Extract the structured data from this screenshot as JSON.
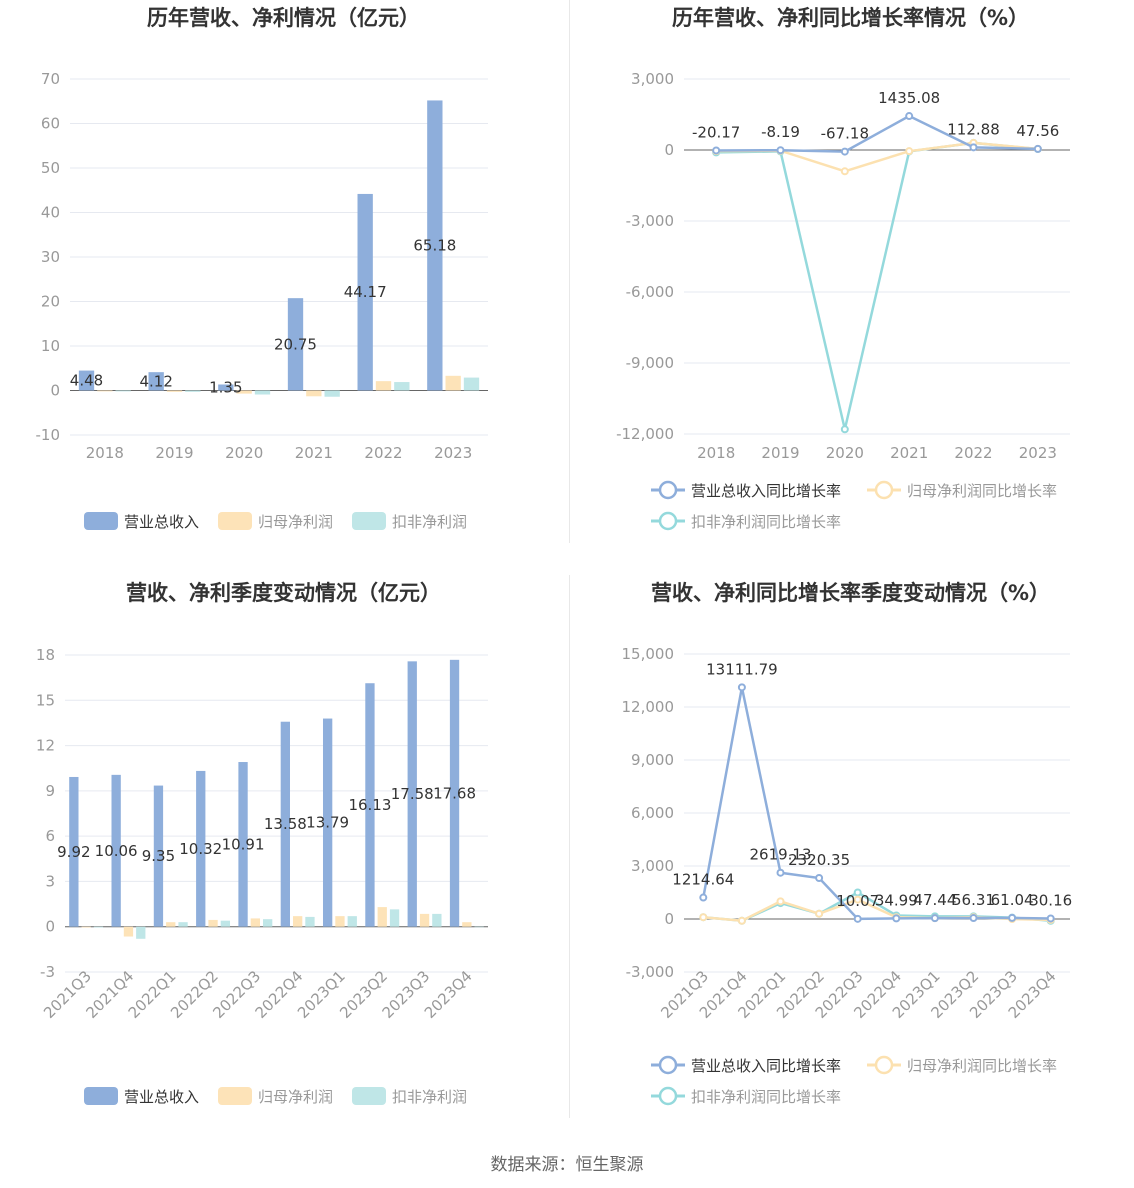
{
  "colors": {
    "revenue": "#8eaedb",
    "net_profit": "#fde3b8",
    "deducted_profit": "#bfe6e7",
    "revenue_line": "#8eaedb",
    "net_profit_line": "#fce1b0",
    "deducted_profit_line": "#94d9dc",
    "grid": "#e6e9f0",
    "axis_text": "#999999",
    "title": "#333333"
  },
  "source": "数据来源：恒生聚源",
  "chart_data": [
    {
      "id": "annual_bar",
      "type": "bar",
      "title": "历年营收、净利情况（亿元）",
      "categories": [
        "2018",
        "2019",
        "2020",
        "2021",
        "2022",
        "2023"
      ],
      "ylim": [
        -10,
        70
      ],
      "yticks": [
        -10,
        0,
        10,
        20,
        30,
        40,
        50,
        60,
        70
      ],
      "series": [
        {
          "name": "营业总收入",
          "values": [
            4.48,
            4.12,
            1.35,
            20.75,
            44.17,
            65.18
          ],
          "labels": [
            "4.48",
            "4.12",
            "1.35",
            "20.75",
            "44.17",
            "65.18"
          ]
        },
        {
          "name": "归母净利润",
          "values": [
            -0.2,
            -0.3,
            -0.7,
            -1.3,
            2.1,
            3.3
          ]
        },
        {
          "name": "扣非净利润",
          "values": [
            -0.2,
            -0.3,
            -0.9,
            -1.4,
            1.9,
            2.9
          ]
        }
      ],
      "legend_position": "bottom"
    },
    {
      "id": "annual_growth",
      "type": "line",
      "title": "历年营收、净利同比增长率情况（%）",
      "categories": [
        "2018",
        "2019",
        "2020",
        "2021",
        "2022",
        "2023"
      ],
      "ylim": [
        -12000,
        3000
      ],
      "yticks": [
        -12000,
        -9000,
        -6000,
        -3000,
        0,
        3000
      ],
      "ytick_labels": [
        "-12,000",
        "-9,000",
        "-6,000",
        "-3,000",
        "0",
        "3,000"
      ],
      "series": [
        {
          "name": "营业总收入同比增长率",
          "values": [
            -20.17,
            -8.19,
            -67.18,
            1435.08,
            112.88,
            47.56
          ],
          "labels": [
            "-20.17",
            "-8.19",
            "-67.18",
            "1435.08",
            "112.88",
            "47.56"
          ]
        },
        {
          "name": "归母净利润同比增长率",
          "values": [
            -50,
            -30,
            -900,
            -50,
            300,
            50
          ]
        },
        {
          "name": "扣非净利润同比增长率",
          "values": [
            -100,
            -60,
            -11800,
            -60,
            300,
            40
          ]
        }
      ],
      "legend_position": "bottom"
    },
    {
      "id": "quarter_bar",
      "type": "bar",
      "title": "营收、净利季度变动情况（亿元）",
      "categories": [
        "2021Q3",
        "2021Q4",
        "2022Q1",
        "2022Q2",
        "2022Q3",
        "2022Q4",
        "2023Q1",
        "2023Q2",
        "2023Q3",
        "2023Q4"
      ],
      "ylim": [
        -3,
        18
      ],
      "yticks": [
        -3,
        0,
        3,
        6,
        9,
        12,
        15,
        18
      ],
      "series": [
        {
          "name": "营业总收入",
          "values": [
            9.92,
            10.06,
            9.35,
            10.32,
            10.91,
            13.58,
            13.79,
            16.13,
            17.58,
            17.68
          ],
          "labels": [
            "9.92",
            "10.06",
            "9.35",
            "10.32",
            "10.91",
            "13.58",
            "13.79",
            "16.13",
            "17.58",
            "17.68"
          ]
        },
        {
          "name": "归母净利润",
          "values": [
            -0.05,
            -0.65,
            0.3,
            0.45,
            0.55,
            0.7,
            0.7,
            1.3,
            0.85,
            0.3
          ]
        },
        {
          "name": "扣非净利润",
          "values": [
            -0.05,
            -0.8,
            0.3,
            0.4,
            0.5,
            0.65,
            0.7,
            1.15,
            0.85,
            0.0
          ]
        }
      ],
      "legend_position": "bottom"
    },
    {
      "id": "quarter_growth",
      "type": "line",
      "title": "营收、净利同比增长率季度变动情况（%）",
      "categories": [
        "2021Q3",
        "2021Q4",
        "2022Q1",
        "2022Q2",
        "2022Q3",
        "2022Q4",
        "2023Q1",
        "2023Q2",
        "2023Q3",
        "2023Q4"
      ],
      "ylim": [
        -3000,
        15000
      ],
      "yticks": [
        -3000,
        0,
        3000,
        6000,
        9000,
        12000,
        15000
      ],
      "ytick_labels": [
        "-3,000",
        "0",
        "3,000",
        "6,000",
        "9,000",
        "12,000",
        "15,000"
      ],
      "series": [
        {
          "name": "营业总收入同比增长率",
          "values": [
            1214.64,
            13111.79,
            2619.13,
            2320.35,
            10.07,
            34.99,
            47.44,
            56.31,
            61.04,
            30.16
          ],
          "labels": [
            "1214.64",
            "13111.79",
            "2619.13",
            "2320.35",
            "10.07",
            "34.99",
            "47.44",
            "56.31",
            "61.04",
            "30.16"
          ]
        },
        {
          "name": "归母净利润同比增长率",
          "values": [
            100,
            -100,
            1000,
            300,
            1100,
            100,
            50,
            100,
            0,
            -50
          ]
        },
        {
          "name": "扣非净利润同比增长率",
          "values": [
            100,
            -100,
            900,
            300,
            1500,
            200,
            150,
            150,
            80,
            -100
          ]
        }
      ],
      "legend_position": "bottom"
    }
  ]
}
